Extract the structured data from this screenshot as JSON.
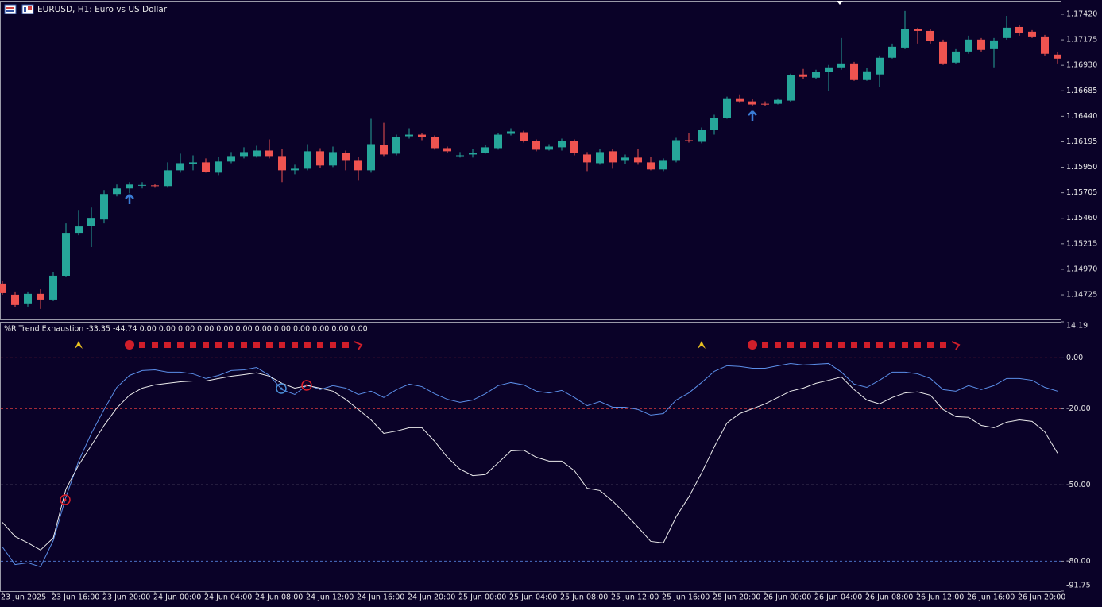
{
  "chart_data": [
    {
      "type": "candlestick",
      "title": "EURUSD, H1:  Euro vs US Dollar",
      "up_color": "#26a69a",
      "down_color": "#ef5350",
      "ylim": [
        1.14481,
        1.17542
      ],
      "yticks": [
        {
          "value": 1.1742,
          "label": "1.17420"
        },
        {
          "value": 1.17175,
          "label": "1.17175"
        },
        {
          "value": 1.1693,
          "label": "1.16930"
        },
        {
          "value": 1.16685,
          "label": "1.16685"
        },
        {
          "value": 1.1644,
          "label": "1.16440"
        },
        {
          "value": 1.16195,
          "label": "1.16195"
        },
        {
          "value": 1.1595,
          "label": "1.15950"
        },
        {
          "value": 1.15705,
          "label": "1.15705"
        },
        {
          "value": 1.1546,
          "label": "1.15460"
        },
        {
          "value": 1.15215,
          "label": "1.15215"
        },
        {
          "value": 1.1497,
          "label": "1.14970"
        },
        {
          "value": 1.14725,
          "label": "1.14725"
        }
      ],
      "open": [
        1.14833,
        1.14726,
        1.14635,
        1.14734,
        1.1468,
        1.14901,
        1.1532,
        1.15388,
        1.15449,
        1.15693,
        1.15746,
        1.15776,
        1.15776,
        1.15769,
        1.15921,
        1.15982,
        1.15997,
        1.15898,
        1.16005,
        1.16058,
        1.16058,
        1.16111,
        1.16058,
        1.15921,
        1.15936,
        1.16104,
        1.15967,
        1.16088,
        1.16012,
        1.15921,
        1.16164,
        1.16081,
        1.16248,
        1.16263,
        1.1624,
        1.16134,
        1.16058,
        1.16073,
        1.16088,
        1.16134,
        1.16271,
        1.16286,
        1.16202,
        1.16119,
        1.16142,
        1.16202,
        1.16073,
        1.15989,
        1.16104,
        1.16012,
        1.16043,
        1.15997,
        1.15929,
        1.16012,
        1.1621,
        1.16195,
        1.16309,
        1.16423,
        1.16613,
        1.16583,
        1.1656,
        1.1656,
        1.16591,
        1.16842,
        1.16811,
        1.16865,
        1.1691,
        1.16948,
        1.16788,
        1.16842,
        1.17002,
        1.171,
        1.17275,
        1.1726,
        1.17154,
        1.16956,
        1.17062,
        1.17177,
        1.17085,
        1.17192,
        1.17298,
        1.17253,
        1.17207,
        1.17032
      ],
      "high": [
        1.14855,
        1.14757,
        1.14757,
        1.14779,
        1.14947,
        1.15411,
        1.1554,
        1.15563,
        1.15731,
        1.15784,
        1.15807,
        1.15807,
        1.15792,
        1.15997,
        1.16081,
        1.16065,
        1.16035,
        1.1605,
        1.16096,
        1.16142,
        1.16157,
        1.16218,
        1.16126,
        1.15974,
        1.16172,
        1.16134,
        1.16149,
        1.16111,
        1.1605,
        1.16416,
        1.16377,
        1.16263,
        1.16324,
        1.16279,
        1.16256,
        1.16149,
        1.16096,
        1.16126,
        1.16164,
        1.16279,
        1.16324,
        1.16301,
        1.16218,
        1.16172,
        1.16225,
        1.16218,
        1.16096,
        1.16126,
        1.16126,
        1.16073,
        1.16126,
        1.1605,
        1.16035,
        1.16233,
        1.16279,
        1.16332,
        1.16454,
        1.16629,
        1.16651,
        1.16606,
        1.16583,
        1.16613,
        1.16849,
        1.16895,
        1.16887,
        1.16933,
        1.17192,
        1.16963,
        1.16903,
        1.17024,
        1.17138,
        1.17451,
        1.17291,
        1.17275,
        1.17177,
        1.17085,
        1.17215,
        1.17192,
        1.17192,
        1.17405,
        1.17314,
        1.17268,
        1.17222,
        1.17055
      ],
      "low": [
        1.14726,
        1.14604,
        1.14612,
        1.14589,
        1.14665,
        1.14894,
        1.15297,
        1.15183,
        1.15411,
        1.1567,
        1.157,
        1.15746,
        1.15761,
        1.15761,
        1.15898,
        1.15921,
        1.15898,
        1.15875,
        1.15989,
        1.16035,
        1.16043,
        1.16035,
        1.15807,
        1.15883,
        1.15921,
        1.15944,
        1.15951,
        1.15921,
        1.15822,
        1.15898,
        1.16058,
        1.16065,
        1.16225,
        1.1621,
        1.16119,
        1.16088,
        1.16043,
        1.16043,
        1.16081,
        1.16119,
        1.16256,
        1.16187,
        1.16104,
        1.16111,
        1.16111,
        1.16065,
        1.15913,
        1.15974,
        1.15936,
        1.15982,
        1.15974,
        1.15921,
        1.15913,
        1.15997,
        1.16187,
        1.1618,
        1.16263,
        1.16416,
        1.16568,
        1.16537,
        1.16537,
        1.16553,
        1.16575,
        1.16796,
        1.16796,
        1.16682,
        1.16887,
        1.16781,
        1.16781,
        1.1672,
        1.16994,
        1.17085,
        1.17138,
        1.17138,
        1.16933,
        1.16948,
        1.1704,
        1.17062,
        1.1691,
        1.17177,
        1.17215,
        1.17192,
        1.17024,
        1.16948
      ],
      "close": [
        1.14741,
        1.14627,
        1.14734,
        1.1468,
        1.14909,
        1.1532,
        1.15381,
        1.15457,
        1.15693,
        1.15746,
        1.15784,
        1.1578,
        1.15773,
        1.15921,
        1.15989,
        1.15997,
        1.15906,
        1.16005,
        1.16058,
        1.16096,
        1.16111,
        1.16058,
        1.15921,
        1.15936,
        1.16104,
        1.15967,
        1.16096,
        1.16012,
        1.15921,
        1.16172,
        1.16073,
        1.1624,
        1.16263,
        1.1624,
        1.16134,
        1.16104,
        1.16065,
        1.16088,
        1.16142,
        1.16263,
        1.16294,
        1.16202,
        1.16119,
        1.16149,
        1.16202,
        1.16088,
        1.15997,
        1.16096,
        1.15997,
        1.16043,
        1.15997,
        1.15929,
        1.16012,
        1.1621,
        1.16202,
        1.16309,
        1.16423,
        1.16613,
        1.16583,
        1.16553,
        1.16553,
        1.16598,
        1.16834,
        1.16819,
        1.16865,
        1.1691,
        1.16948,
        1.16788,
        1.16872,
        1.17002,
        1.17108,
        1.17275,
        1.1726,
        1.17161,
        1.16948,
        1.17062,
        1.17177,
        1.17078,
        1.17169,
        1.17291,
        1.17237,
        1.17207,
        1.1704,
        1.16994
      ]
    },
    {
      "type": "line",
      "title": "%R Trend Exhaustion -33.35 -44.74 0.00 0.00 0.00 0.00 0.00 0.00 0.00 0.00 0.00 0.00 0.00 0.00",
      "categories": [
        "23 Jun 2025",
        null,
        null,
        null,
        "23 Jun 16:00",
        null,
        null,
        null,
        "23 Jun 20:00",
        null,
        null,
        null,
        "24 Jun 00:00",
        null,
        null,
        null,
        "24 Jun 04:00",
        null,
        null,
        null,
        "24 Jun 08:00",
        null,
        null,
        null,
        "24 Jun 12:00",
        null,
        null,
        null,
        "24 Jun 16:00",
        null,
        null,
        null,
        "24 Jun 20:00",
        null,
        null,
        null,
        "25 Jun 00:00",
        null,
        null,
        null,
        "25 Jun 04:00",
        null,
        null,
        null,
        "25 Jun 08:00",
        null,
        null,
        null,
        "25 Jun 12:00",
        null,
        null,
        null,
        "25 Jun 16:00",
        null,
        null,
        null,
        "25 Jun 20:00",
        null,
        null,
        null,
        "26 Jun 00:00",
        null,
        null,
        null,
        "26 Jun 04:00",
        null,
        null,
        null,
        "26 Jun 08:00",
        null,
        null,
        null,
        "26 Jun 12:00",
        null,
        null,
        null,
        "26 Jun 16:00",
        null,
        null,
        null,
        "26 Jun 20:00",
        null,
        null,
        null
      ],
      "ylim": [
        -91.75,
        14.19
      ],
      "yticks": [
        14.19,
        {
          "value": 0,
          "label": "0.00"
        },
        {
          "value": -20,
          "label": "-20.00"
        },
        {
          "value": -50,
          "label": "-50.00"
        },
        {
          "value": -80,
          "label": "-80.00"
        },
        -91.75
      ],
      "levels": [
        {
          "value": 0,
          "color": "#b8333a"
        },
        {
          "value": -20,
          "color": "#b8333a"
        },
        {
          "value": -50,
          "color": "#d8d8d8"
        },
        {
          "value": -80,
          "color": "#4a6fc4"
        }
      ],
      "series": [
        {
          "color": "#5b8ee8",
          "values": [
            -74.4,
            -81.3,
            -80.6,
            -82.2,
            -71.9,
            -54.7,
            -40.6,
            -29.7,
            -20.3,
            -11.6,
            -6.9,
            -5.0,
            -4.7,
            -5.6,
            -5.6,
            -6.3,
            -8.1,
            -6.9,
            -5.0,
            -4.7,
            -3.8,
            -6.9,
            -12.5,
            -14.4,
            -10.6,
            -12.5,
            -10.9,
            -11.9,
            -14.4,
            -13.1,
            -15.6,
            -12.5,
            -10.3,
            -11.3,
            -14.1,
            -16.3,
            -17.5,
            -16.6,
            -14.1,
            -10.9,
            -9.7,
            -10.6,
            -13.1,
            -13.8,
            -12.8,
            -15.6,
            -18.8,
            -17.2,
            -19.4,
            -19.4,
            -20.3,
            -22.5,
            -21.9,
            -16.6,
            -13.8,
            -9.7,
            -5.3,
            -3.1,
            -3.4,
            -4.1,
            -4.1,
            -3.1,
            -2.2,
            -2.8,
            -2.5,
            -2.2,
            -5.6,
            -10.3,
            -11.6,
            -8.8,
            -5.6,
            -5.6,
            -6.3,
            -8.1,
            -12.5,
            -13.1,
            -10.9,
            -12.5,
            -10.9,
            -8.1,
            -8.1,
            -8.8,
            -11.6,
            -13.1
          ]
        },
        {
          "color": "#ececec",
          "values": [
            -64.7,
            -70.3,
            -72.8,
            -75.6,
            -70.9,
            -51.6,
            -42.2,
            -34.4,
            -26.6,
            -19.7,
            -14.7,
            -11.9,
            -10.6,
            -10.0,
            -9.4,
            -9.1,
            -9.1,
            -8.1,
            -7.2,
            -6.6,
            -5.9,
            -7.2,
            -10.0,
            -11.9,
            -10.9,
            -11.9,
            -13.1,
            -16.3,
            -20.3,
            -24.4,
            -29.7,
            -28.8,
            -27.5,
            -27.5,
            -32.8,
            -39.1,
            -43.8,
            -46.3,
            -45.9,
            -41.3,
            -36.6,
            -36.3,
            -39.1,
            -40.6,
            -40.6,
            -44.4,
            -51.3,
            -52.2,
            -56.3,
            -61.3,
            -66.6,
            -72.2,
            -72.8,
            -62.5,
            -54.7,
            -45.3,
            -35.0,
            -25.6,
            -21.9,
            -20.0,
            -18.1,
            -15.6,
            -13.1,
            -11.9,
            -10.0,
            -8.8,
            -7.5,
            -12.5,
            -16.6,
            -18.1,
            -15.6,
            -13.8,
            -13.4,
            -14.7,
            -20.3,
            -23.1,
            -23.4,
            -26.6,
            -27.5,
            -25.3,
            -24.4,
            -25.0,
            -29.1,
            -37.5
          ]
        }
      ]
    }
  ]
}
